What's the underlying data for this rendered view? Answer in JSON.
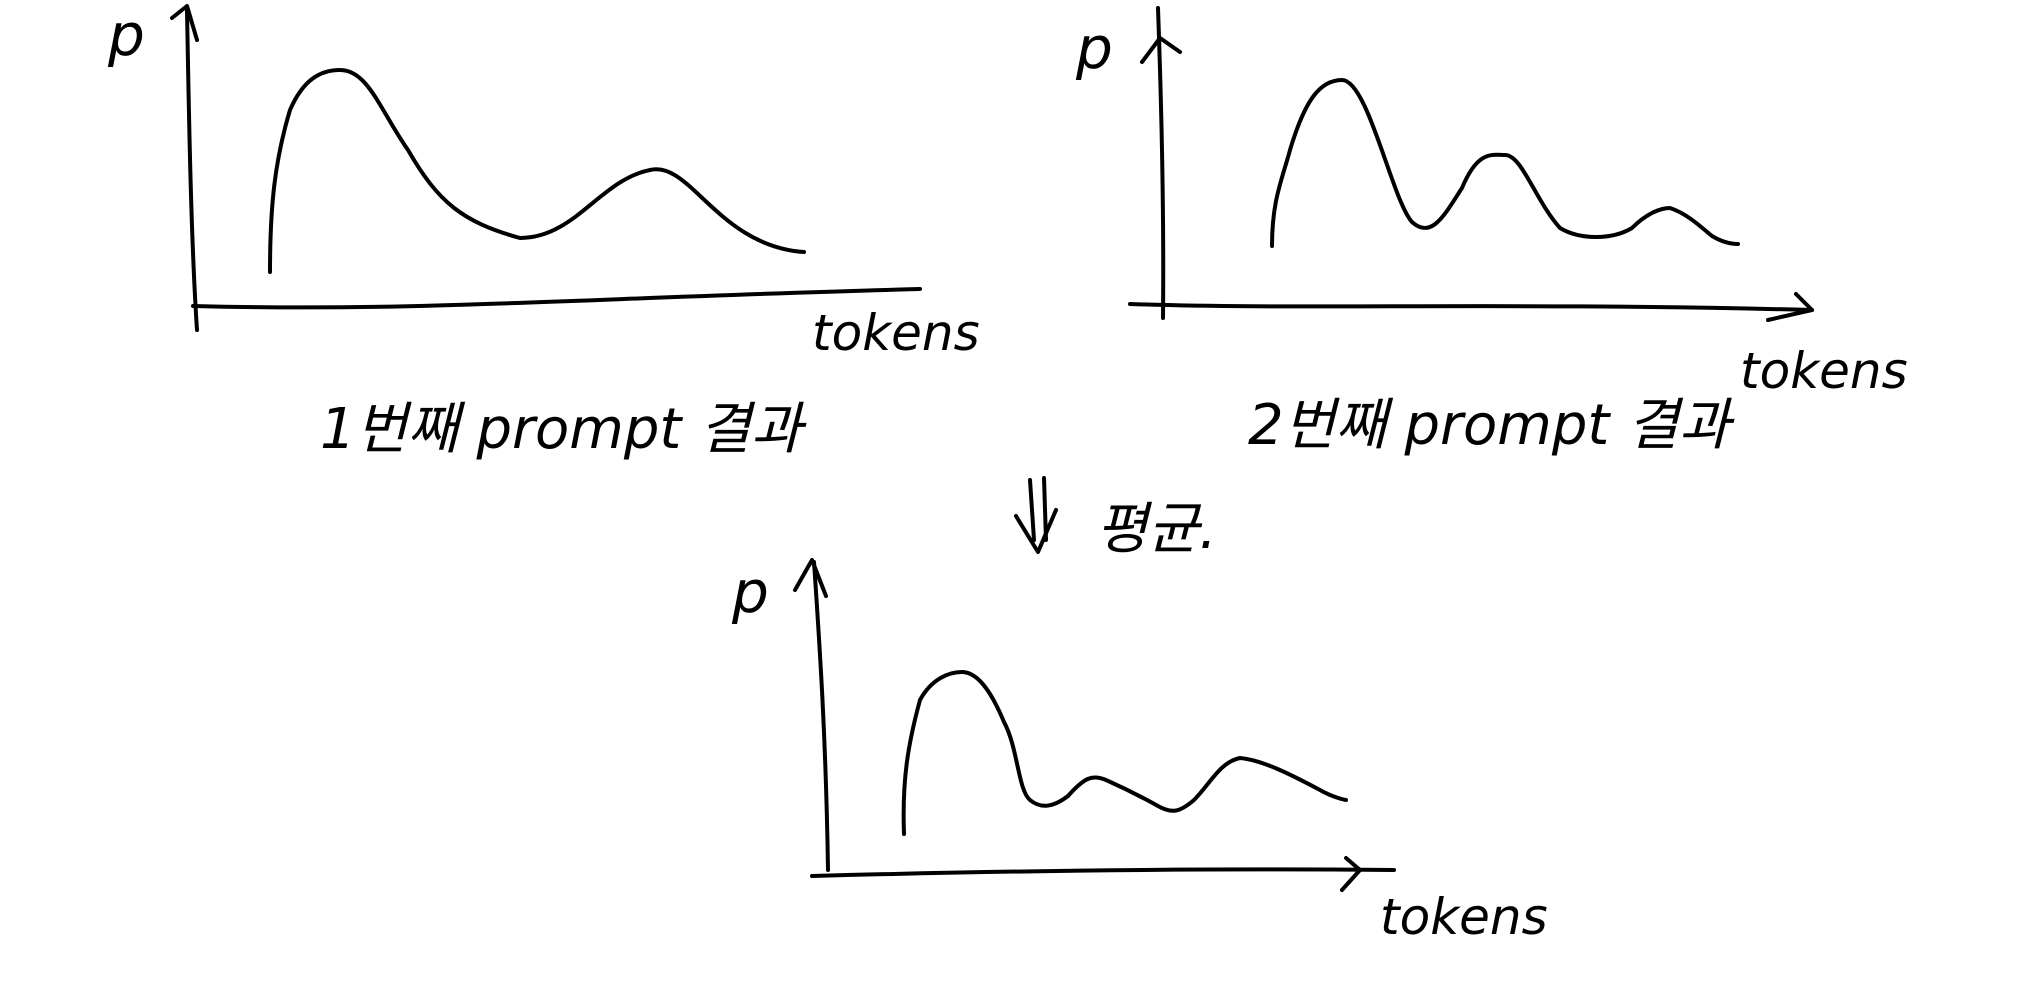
{
  "panels": [
    {
      "y_label": "p",
      "x_label": "tokens",
      "caption": "1번째 prompt 결과",
      "curve": "bimodal"
    },
    {
      "y_label": "p",
      "x_label": "tokens",
      "caption": "2번째 prompt 결과",
      "curve": "multimodal"
    },
    {
      "y_label": "p",
      "x_label": "tokens",
      "caption": "",
      "curve": "averaged"
    }
  ],
  "connector": {
    "arrow": "⇓",
    "label": "평균."
  },
  "colors": {
    "ink": "#000000",
    "background": "#ffffff"
  }
}
